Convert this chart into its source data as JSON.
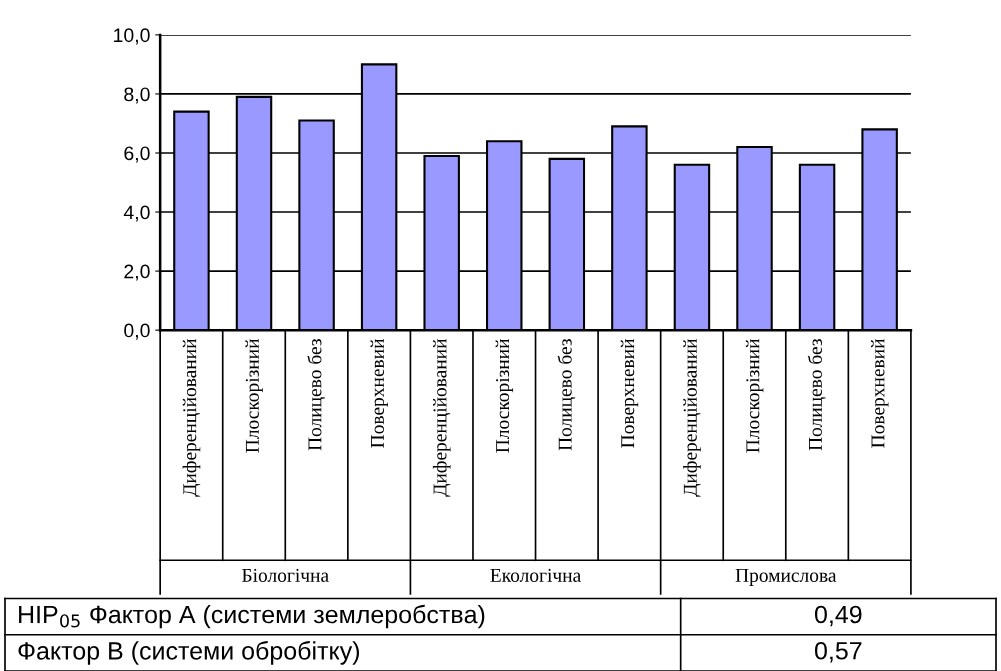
{
  "chart_data": {
    "type": "bar",
    "categories": [
      "Диференційований",
      "Плоскорізний",
      "Полицево без",
      "Поверхневий",
      "Диференційований",
      "Плоскорізний",
      "Полицево без",
      "Поверхневий",
      "Диференційований",
      "Плоскорізний",
      "Полицево без",
      "Поверхневий"
    ],
    "values": [
      7.4,
      7.9,
      7.1,
      9.0,
      5.9,
      6.4,
      5.8,
      6.9,
      5.6,
      6.2,
      5.6,
      6.8
    ],
    "color": "#9999ff",
    "ylim": [
      0,
      10
    ],
    "yticks": [
      {
        "value": 0,
        "label": "0,0"
      },
      {
        "value": 2,
        "label": "2,0"
      },
      {
        "value": 4,
        "label": "4,0"
      },
      {
        "value": 6,
        "label": "6,0"
      },
      {
        "value": 8,
        "label": "8,0"
      },
      {
        "value": 10,
        "label": "10,0"
      }
    ],
    "grid": "y",
    "legend": false,
    "annotations": [
      "Біологічна",
      "Екологічна",
      "Промислова",
      "HIP$_{05}$ Фактор А (системи землеробства)",
      "0,49",
      "Фактор В (системи обробітку)",
      "0,57"
    ]
  }
}
